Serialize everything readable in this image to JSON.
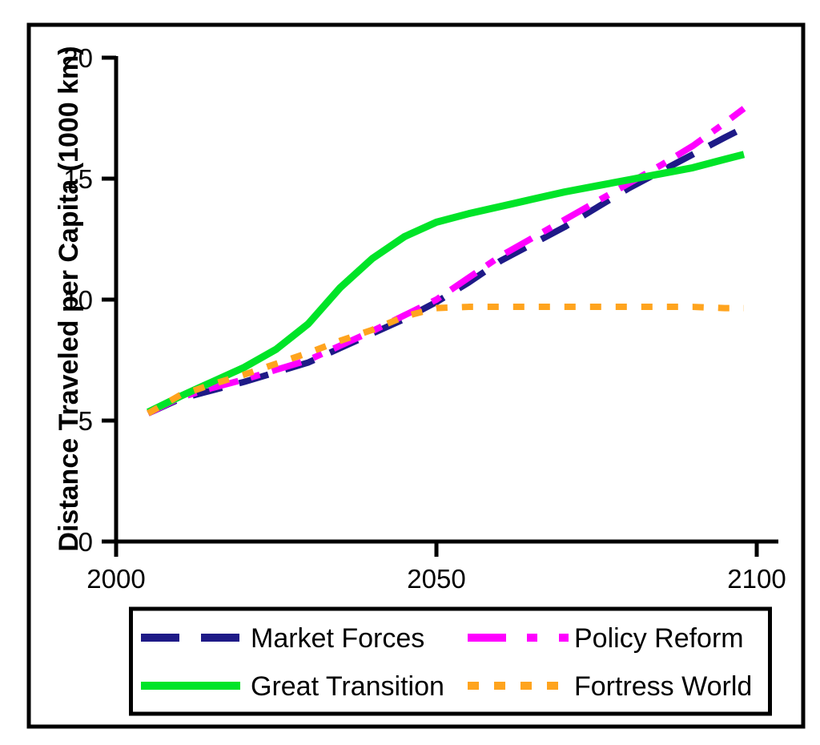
{
  "figure": {
    "background": "#ffffff",
    "border_color": "#000000"
  },
  "chart_data": {
    "type": "line",
    "title": "",
    "xlabel": "",
    "ylabel": "Distance Traveled per Capita (1000 km)",
    "xlim": [
      2000,
      2104
    ],
    "ylim": [
      0,
      20
    ],
    "x_ticks": [
      2000,
      2050,
      2100
    ],
    "y_ticks": [
      0,
      5,
      10,
      15,
      20
    ],
    "grid": false,
    "legend_position": "bottom",
    "x": [
      2005,
      2010,
      2015,
      2020,
      2025,
      2030,
      2035,
      2040,
      2045,
      2050,
      2055,
      2060,
      2065,
      2070,
      2075,
      2080,
      2085,
      2090,
      2095,
      2098
    ],
    "series": [
      {
        "name": "Market Forces",
        "color": "#1e1a87",
        "style": "long-dash",
        "values": [
          5.3,
          5.9,
          6.25,
          6.6,
          7.0,
          7.4,
          8.0,
          8.6,
          9.2,
          9.9,
          10.7,
          11.6,
          12.3,
          13.0,
          13.8,
          14.6,
          15.3,
          16.0,
          16.7,
          17.1
        ]
      },
      {
        "name": "Policy Reform",
        "color": "#ff00ff",
        "style": "dash-dot",
        "values": [
          5.3,
          5.95,
          6.35,
          6.7,
          7.1,
          7.5,
          8.1,
          8.7,
          9.35,
          10.0,
          10.9,
          11.8,
          12.55,
          13.3,
          14.05,
          14.8,
          15.55,
          16.35,
          17.3,
          17.9
        ]
      },
      {
        "name": "Great Transition",
        "color": "#00e428",
        "style": "solid",
        "values": [
          5.35,
          6.0,
          6.6,
          7.2,
          7.95,
          9.0,
          10.5,
          11.7,
          12.6,
          13.2,
          13.55,
          13.85,
          14.15,
          14.45,
          14.7,
          14.95,
          15.2,
          15.45,
          15.8,
          16.0
        ]
      },
      {
        "name": "Fortress World",
        "color": "#ffa41e",
        "style": "dot",
        "values": [
          5.3,
          6.05,
          6.5,
          6.9,
          7.35,
          7.8,
          8.3,
          8.75,
          9.3,
          9.65,
          9.7,
          9.7,
          9.7,
          9.7,
          9.7,
          9.7,
          9.7,
          9.7,
          9.65,
          9.65
        ]
      }
    ],
    "legend": {
      "rows": [
        [
          "Market Forces",
          "Policy Reform"
        ],
        [
          "Great Transition",
          "Fortress World"
        ]
      ]
    }
  }
}
